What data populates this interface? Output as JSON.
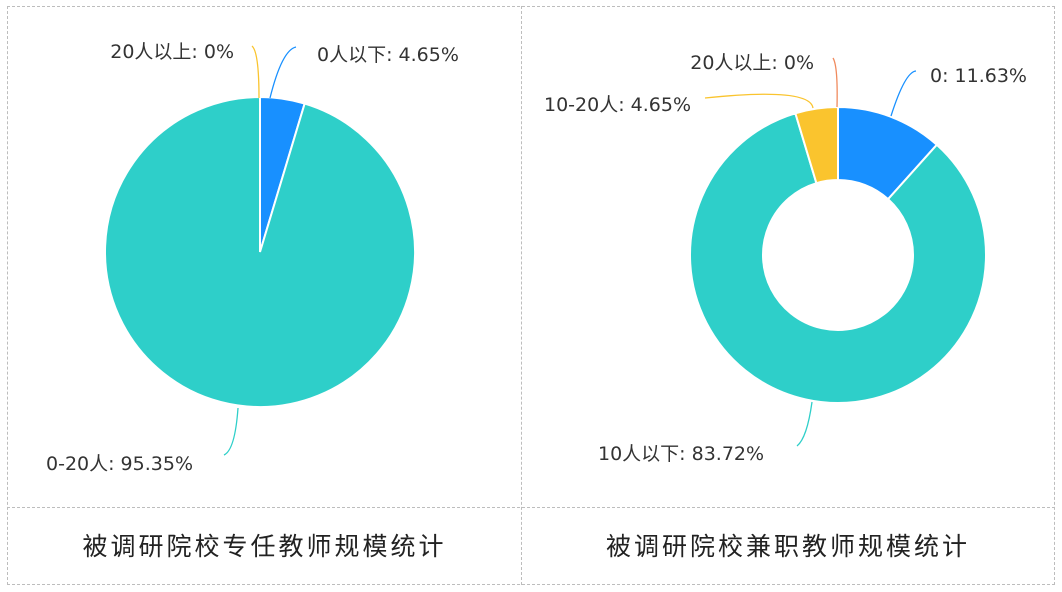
{
  "chart_data": [
    {
      "type": "pie",
      "caption": "被调研院校专任教师规模统计",
      "slices": [
        {
          "label": "0人以下",
          "value": 4.65,
          "display": "0人以下: 4.65%",
          "color": "#1890ff"
        },
        {
          "label": "0-20人",
          "value": 95.35,
          "display": "0-20人: 95.35%",
          "color": "#2ecfc9"
        },
        {
          "label": "20人以上",
          "value": 0,
          "display": "20人以上: 0%",
          "color": "#fac42e"
        }
      ]
    },
    {
      "type": "pie",
      "variant": "donut",
      "caption": "被调研院校兼职教师规模统计",
      "slices": [
        {
          "label": "0",
          "value": 11.63,
          "display": "0: 11.63%",
          "color": "#1890ff"
        },
        {
          "label": "10人以下",
          "value": 83.72,
          "display": "10人以下: 83.72%",
          "color": "#2ecfc9"
        },
        {
          "label": "10-20人",
          "value": 4.65,
          "display": "10-20人: 4.65%",
          "color": "#fac42e"
        },
        {
          "label": "20人以上",
          "value": 0,
          "display": "20人以上: 0%",
          "color": "#f08a5d"
        }
      ]
    }
  ]
}
